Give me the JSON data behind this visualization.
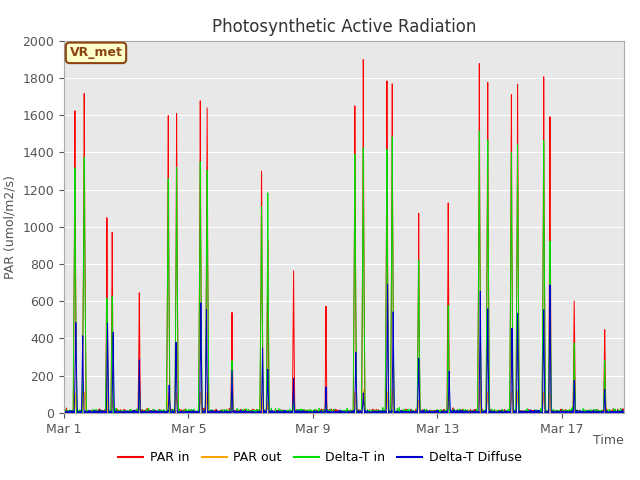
{
  "title": "Photosynthetic Active Radiation",
  "ylabel": "PAR (umol/m2/s)",
  "xlabel": "Time",
  "ylim": [
    0,
    2000
  ],
  "yticks": [
    0,
    200,
    400,
    600,
    800,
    1000,
    1200,
    1400,
    1600,
    1800,
    2000
  ],
  "xtick_labels": [
    "Mar 1",
    "Mar 5",
    "Mar 9",
    "Mar 13",
    "Mar 17"
  ],
  "xtick_positions": [
    0,
    4,
    8,
    12,
    16
  ],
  "colors": {
    "PAR in": "#ff0000",
    "PAR out": "#ffa500",
    "Delta-T in": "#00dd00",
    "Delta-T Diffuse": "#0000cc"
  },
  "label_box": "VR_met",
  "label_box_color": "#ffffcc",
  "label_box_border": "#8B4513",
  "plot_bg_color": "#e8e8e8",
  "fig_bg_color": "#ffffff",
  "n_days": 18,
  "xlim_end": 18,
  "title_fontsize": 12,
  "axis_label_fontsize": 9,
  "tick_fontsize": 9,
  "legend_fontsize": 9,
  "grid_color": "#ffffff",
  "grid_linewidth": 0.8
}
